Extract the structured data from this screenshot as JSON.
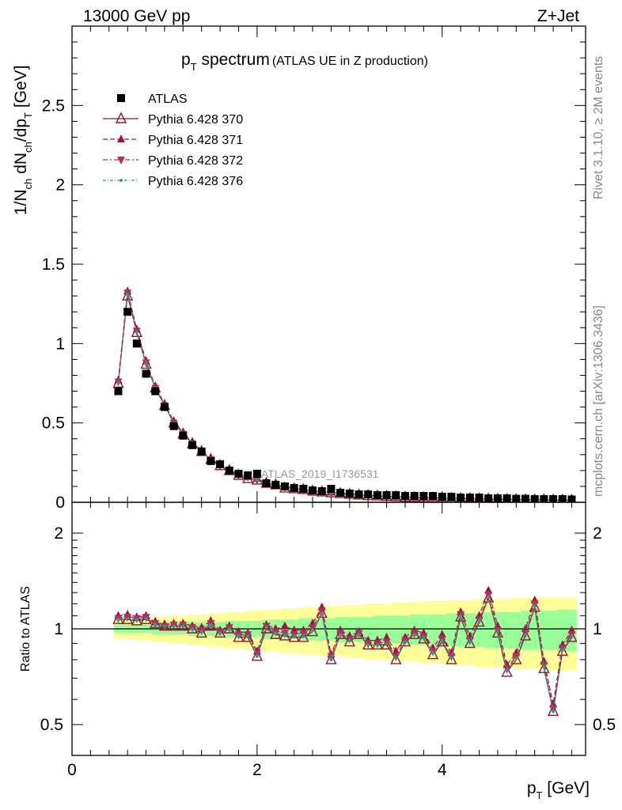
{
  "header": {
    "left": "13000 GeV pp",
    "right": "Z+Jet"
  },
  "title_main": "p",
  "title_sub": "T",
  "title_rest": " spectrum",
  "title_paren": "(ATLAS UE in Z production)",
  "analysis_label": "ATLAS_2019_I1736531",
  "side_texts": {
    "rivet": "Rivet 3.1.10, ≥ 2M events",
    "mcplots": "mcplots.cern.ch [arXiv:1306.3436]"
  },
  "colors": {
    "data": "#000000",
    "p370": "#8b1a2b",
    "p371": "#a0104a",
    "p372": "#b0305a",
    "p376": "#2a9d8f",
    "band_yellow": "#ffff99",
    "band_green": "#99ff99"
  },
  "chart_data": [
    {
      "type": "scatter",
      "panel": "main",
      "ylabel": "1/N_ch dN_ch/dp_T [GeV]",
      "xlim": [
        0,
        5.55
      ],
      "ylim": [
        0,
        3.0
      ],
      "yticks": [
        "0",
        "0.5",
        "1",
        "1.5",
        "2",
        "2.5"
      ],
      "legend_position": "top-left",
      "x": [
        0.5,
        0.6,
        0.7,
        0.8,
        0.9,
        1.0,
        1.1,
        1.2,
        1.3,
        1.4,
        1.5,
        1.6,
        1.7,
        1.8,
        1.9,
        2.0,
        2.1,
        2.2,
        2.3,
        2.4,
        2.5,
        2.6,
        2.7,
        2.8,
        2.9,
        3.0,
        3.1,
        3.2,
        3.3,
        3.4,
        3.5,
        3.6,
        3.7,
        3.8,
        3.9,
        4.0,
        4.1,
        4.2,
        4.3,
        4.4,
        4.5,
        4.6,
        4.7,
        4.8,
        4.9,
        5.0,
        5.1,
        5.2,
        5.3,
        5.4
      ],
      "series": [
        {
          "name": "ATLAS",
          "marker": "square",
          "values": [
            0.7,
            1.2,
            1.0,
            0.81,
            0.7,
            0.6,
            0.48,
            0.42,
            0.36,
            0.32,
            0.26,
            0.24,
            0.2,
            0.18,
            0.17,
            0.18,
            0.12,
            0.11,
            0.1,
            0.09,
            0.085,
            0.075,
            0.07,
            0.085,
            0.06,
            0.055,
            0.05,
            0.05,
            0.045,
            0.045,
            0.045,
            0.04,
            0.04,
            0.04,
            0.04,
            0.035,
            0.035,
            0.03,
            0.03,
            0.03,
            0.025,
            0.025,
            0.025,
            0.022,
            0.022,
            0.02,
            0.02,
            0.02,
            0.02,
            0.018
          ]
        },
        {
          "name": "Pythia 6.428 370",
          "marker": "open-triangle-up",
          "values": [
            0.75,
            1.3,
            1.07,
            0.87,
            0.72,
            0.61,
            0.5,
            0.43,
            0.37,
            0.32,
            0.27,
            0.23,
            0.2,
            0.17,
            0.15,
            0.14,
            0.12,
            0.11,
            0.09,
            0.085,
            0.08,
            0.07,
            0.065,
            0.06,
            0.055,
            0.05,
            0.045,
            0.042,
            0.04,
            0.038,
            0.035,
            0.033,
            0.03,
            0.028,
            0.027,
            0.025,
            0.024,
            0.023,
            0.022,
            0.021,
            0.02,
            0.019,
            0.018,
            0.017,
            0.016,
            0.015,
            0.015,
            0.014,
            0.014,
            0.013
          ]
        },
        {
          "name": "Pythia 6.428 371",
          "marker": "filled-triangle-up",
          "values": [
            0.77,
            1.33,
            1.09,
            0.89,
            0.73,
            0.62,
            0.51,
            0.44,
            0.37,
            0.33,
            0.27,
            0.24,
            0.2,
            0.18,
            0.16,
            0.15,
            0.12,
            0.11,
            0.1,
            0.09,
            0.08,
            0.07,
            0.067,
            0.062,
            0.057,
            0.052,
            0.047,
            0.044,
            0.041,
            0.039,
            0.036,
            0.034,
            0.031,
            0.029,
            0.028,
            0.026,
            0.025,
            0.024,
            0.023,
            0.022,
            0.021,
            0.02,
            0.019,
            0.018,
            0.017,
            0.016,
            0.016,
            0.015,
            0.015,
            0.014
          ]
        },
        {
          "name": "Pythia 6.428 372",
          "marker": "filled-triangle-down",
          "values": [
            0.76,
            1.32,
            1.08,
            0.88,
            0.72,
            0.61,
            0.5,
            0.43,
            0.37,
            0.32,
            0.27,
            0.23,
            0.2,
            0.17,
            0.16,
            0.14,
            0.12,
            0.11,
            0.095,
            0.087,
            0.08,
            0.07,
            0.066,
            0.061,
            0.056,
            0.051,
            0.046,
            0.043,
            0.04,
            0.038,
            0.035,
            0.033,
            0.03,
            0.028,
            0.027,
            0.025,
            0.024,
            0.023,
            0.022,
            0.021,
            0.02,
            0.019,
            0.018,
            0.017,
            0.016,
            0.015,
            0.015,
            0.014,
            0.014,
            0.013
          ]
        },
        {
          "name": "Pythia 6.428 376",
          "marker": "small-dot",
          "values": [
            0.75,
            1.31,
            1.07,
            0.87,
            0.72,
            0.61,
            0.5,
            0.43,
            0.37,
            0.32,
            0.27,
            0.23,
            0.2,
            0.17,
            0.15,
            0.14,
            0.12,
            0.11,
            0.09,
            0.085,
            0.08,
            0.07,
            0.065,
            0.06,
            0.055,
            0.05,
            0.045,
            0.042,
            0.04,
            0.038,
            0.035,
            0.033,
            0.03,
            0.028,
            0.027,
            0.025,
            0.024,
            0.023,
            0.022,
            0.021,
            0.02,
            0.019,
            0.018,
            0.017,
            0.016,
            0.015,
            0.015,
            0.014,
            0.014,
            0.013
          ]
        }
      ]
    },
    {
      "type": "scatter",
      "panel": "ratio",
      "ylabel": "Ratio to ATLAS",
      "xlabel": "p_T [GeV]",
      "xlim": [
        0,
        5.55
      ],
      "ylim": [
        0.34,
        2.34
      ],
      "xticks": [
        "0",
        "2",
        "4"
      ],
      "yticks": [
        "0.5",
        "1",
        "2"
      ],
      "x": [
        0.5,
        0.6,
        0.7,
        0.8,
        0.9,
        1.0,
        1.1,
        1.2,
        1.3,
        1.4,
        1.5,
        1.6,
        1.7,
        1.8,
        1.9,
        2.0,
        2.1,
        2.2,
        2.3,
        2.4,
        2.5,
        2.6,
        2.7,
        2.8,
        2.9,
        3.0,
        3.1,
        3.2,
        3.3,
        3.4,
        3.5,
        3.6,
        3.7,
        3.8,
        3.9,
        4.0,
        4.1,
        4.2,
        4.3,
        4.4,
        4.5,
        4.6,
        4.7,
        4.8,
        4.9,
        5.0,
        5.1,
        5.2,
        5.3,
        5.4
      ],
      "band_outer": [
        0.07,
        0.07,
        0.08,
        0.08,
        0.09,
        0.09,
        0.1,
        0.1,
        0.11,
        0.11,
        0.12,
        0.12,
        0.13,
        0.13,
        0.14,
        0.14,
        0.15,
        0.15,
        0.16,
        0.16,
        0.17,
        0.17,
        0.18,
        0.18,
        0.18,
        0.19,
        0.19,
        0.2,
        0.2,
        0.2,
        0.21,
        0.21,
        0.21,
        0.22,
        0.22,
        0.22,
        0.23,
        0.23,
        0.23,
        0.24,
        0.24,
        0.24,
        0.24,
        0.25,
        0.25,
        0.25,
        0.25,
        0.26,
        0.26,
        0.26
      ],
      "band_inner": [
        0.03,
        0.03,
        0.03,
        0.03,
        0.04,
        0.04,
        0.04,
        0.04,
        0.05,
        0.05,
        0.05,
        0.05,
        0.06,
        0.06,
        0.06,
        0.06,
        0.07,
        0.07,
        0.07,
        0.07,
        0.08,
        0.08,
        0.08,
        0.08,
        0.09,
        0.09,
        0.09,
        0.09,
        0.1,
        0.1,
        0.1,
        0.1,
        0.11,
        0.11,
        0.11,
        0.11,
        0.12,
        0.12,
        0.12,
        0.12,
        0.13,
        0.13,
        0.13,
        0.13,
        0.14,
        0.14,
        0.14,
        0.14,
        0.15,
        0.15
      ],
      "series": [
        {
          "name": "Pythia 6.428 370",
          "values": [
            1.07,
            1.07,
            1.06,
            1.07,
            1.04,
            1.02,
            1.02,
            1.02,
            1.0,
            0.97,
            1.02,
            0.97,
            1.0,
            0.94,
            0.94,
            0.82,
            1.0,
            0.96,
            0.95,
            0.94,
            0.94,
            0.98,
            1.12,
            0.8,
            0.96,
            0.91,
            0.96,
            0.89,
            0.89,
            0.89,
            0.8,
            0.91,
            0.96,
            0.93,
            0.83,
            0.91,
            0.8,
            1.09,
            0.9,
            1.05,
            1.25,
            0.97,
            0.73,
            0.8,
            0.95,
            1.17,
            0.75,
            0.55,
            0.85,
            0.94
          ]
        },
        {
          "name": "Pythia 6.428 371",
          "values": [
            1.1,
            1.11,
            1.09,
            1.1,
            1.05,
            1.03,
            1.04,
            1.04,
            1.02,
            1.01,
            1.06,
            0.99,
            1.02,
            0.98,
            0.97,
            0.85,
            1.03,
            1.0,
            1.02,
            0.99,
            0.99,
            1.04,
            1.17,
            0.83,
            0.99,
            0.95,
            0.98,
            0.92,
            0.92,
            0.94,
            0.85,
            0.94,
            0.99,
            0.97,
            0.87,
            0.96,
            0.84,
            1.13,
            0.95,
            1.1,
            1.32,
            1.02,
            0.77,
            0.84,
            1.0,
            1.23,
            0.79,
            0.58,
            0.89,
            0.99
          ]
        },
        {
          "name": "Pythia 6.428 372",
          "values": [
            1.08,
            1.09,
            1.08,
            1.09,
            1.04,
            1.02,
            1.03,
            1.03,
            1.01,
            0.99,
            1.04,
            0.98,
            1.01,
            0.96,
            0.96,
            0.84,
            1.02,
            0.98,
            0.97,
            0.96,
            0.97,
            1.01,
            1.14,
            0.82,
            0.97,
            0.93,
            0.97,
            0.9,
            0.9,
            0.91,
            0.82,
            0.92,
            0.97,
            0.95,
            0.85,
            0.93,
            0.82,
            1.11,
            0.92,
            1.07,
            1.28,
            0.99,
            0.75,
            0.82,
            0.97,
            1.2,
            0.77,
            0.56,
            0.87,
            0.96
          ]
        },
        {
          "name": "Pythia 6.428 376",
          "values": [
            1.07,
            1.08,
            1.07,
            1.08,
            1.03,
            1.02,
            1.02,
            1.02,
            1.0,
            0.98,
            1.03,
            0.97,
            1.0,
            0.95,
            0.95,
            0.82,
            1.01,
            0.97,
            0.96,
            0.95,
            0.95,
            0.99,
            1.12,
            0.8,
            0.96,
            0.92,
            0.96,
            0.89,
            0.89,
            0.9,
            0.81,
            0.91,
            0.96,
            0.94,
            0.84,
            0.92,
            0.81,
            1.1,
            0.91,
            1.06,
            1.26,
            0.98,
            0.74,
            0.81,
            0.96,
            1.18,
            0.76,
            0.55,
            0.86,
            0.95
          ]
        }
      ]
    }
  ]
}
